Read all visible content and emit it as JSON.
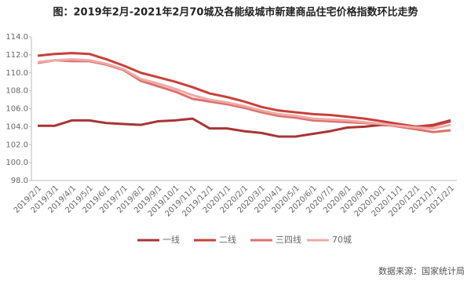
{
  "chart_data": {
    "type": "line",
    "title": "图：2019年2月-2021年2月70城及各能级城市新建商品住宅价格指数环比走势",
    "categories": [
      "2019/2/1",
      "2019/3/1",
      "2019/4/1",
      "2019/5/1",
      "2019/6/1",
      "2019/7/1",
      "2019/8/1",
      "2019/9/1",
      "2019/10/1",
      "2019/11/1",
      "2019/12/1",
      "2020/1/1",
      "2020/2/1",
      "2020/3/1",
      "2020/4/1",
      "2020/5/1",
      "2020/6/1",
      "2020/7/1",
      "2020/8/1",
      "2020/9/1",
      "2020/10/1",
      "2020/11/1",
      "2020/12/1",
      "2021/1/1",
      "2021/2/1"
    ],
    "series": [
      {
        "name": "一线",
        "color": "#a93434",
        "values": [
          104.1,
          104.1,
          104.7,
          104.7,
          104.4,
          104.3,
          104.2,
          104.6,
          104.7,
          104.9,
          103.8,
          103.8,
          103.5,
          103.3,
          102.9,
          102.9,
          103.2,
          103.5,
          103.9,
          104.0,
          104.2,
          104.1,
          104.0,
          104.2,
          104.7
        ]
      },
      {
        "name": "二线",
        "color": "#c8403a",
        "values": [
          111.9,
          112.1,
          112.2,
          112.1,
          111.5,
          110.8,
          110.0,
          109.5,
          109.0,
          108.4,
          107.7,
          107.3,
          106.8,
          106.2,
          105.8,
          105.6,
          105.4,
          105.3,
          105.1,
          104.9,
          104.6,
          104.3,
          104.0,
          104.1,
          104.6
        ]
      },
      {
        "name": "三四线",
        "color": "#dc716d",
        "values": [
          111.1,
          111.4,
          111.3,
          111.3,
          110.9,
          110.3,
          109.1,
          108.5,
          107.9,
          107.1,
          106.8,
          106.5,
          106.1,
          105.6,
          105.2,
          105.0,
          104.7,
          104.6,
          104.5,
          104.4,
          104.3,
          104.0,
          103.7,
          103.4,
          103.6
        ]
      },
      {
        "name": "70城",
        "color": "#efaaa6",
        "values": [
          111.2,
          111.4,
          111.5,
          111.4,
          111.0,
          110.4,
          109.3,
          108.8,
          108.2,
          107.5,
          107.0,
          106.7,
          106.3,
          105.8,
          105.4,
          105.2,
          104.9,
          104.8,
          104.7,
          104.5,
          104.3,
          104.1,
          103.9,
          103.8,
          104.2
        ]
      }
    ],
    "ylim": [
      98,
      114
    ],
    "yticks": [
      {
        "value": 98,
        "label": "98.0"
      },
      {
        "value": 100,
        "label": "100.0"
      },
      {
        "value": 102,
        "label": "102.0"
      },
      {
        "value": 104,
        "label": "104.0"
      },
      {
        "value": 106,
        "label": "106.0"
      },
      {
        "value": 108,
        "label": "108.0"
      },
      {
        "value": 110,
        "label": "110.0"
      },
      {
        "value": 112,
        "label": "112.0"
      },
      {
        "value": 114,
        "label": "114.0"
      }
    ],
    "grid": false,
    "source": "数据来源：国家统计局"
  }
}
